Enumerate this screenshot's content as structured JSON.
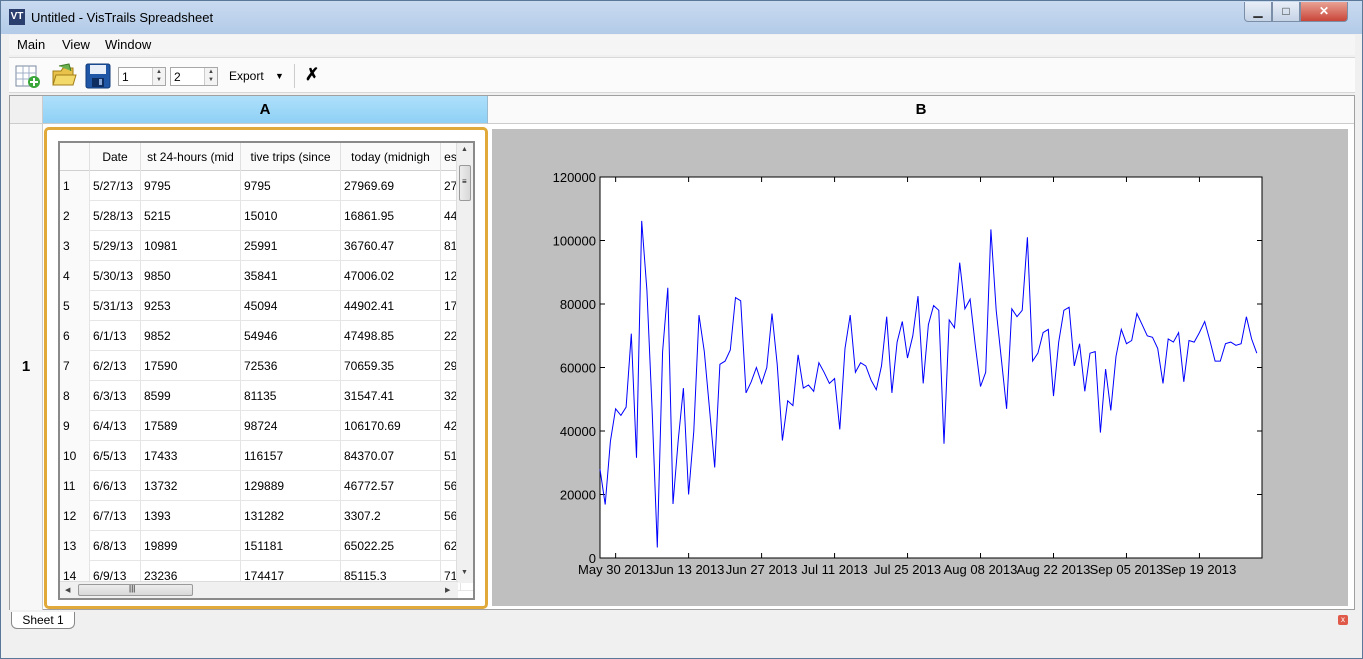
{
  "window": {
    "title": "Untitled - VisTrails Spreadsheet",
    "app_icon": "VT",
    "min": "▁",
    "max": "□",
    "close": "✕"
  },
  "menu": {
    "items": [
      "Main",
      "View",
      "Window"
    ]
  },
  "toolbar": {
    "rows_value": "1",
    "cols_value": "2",
    "export_label": "Export",
    "export_arrow": "▼",
    "clear_icon": "✗",
    "spin_up": "▲",
    "spin_down": "▼"
  },
  "sheet": {
    "col_a": "A",
    "col_b": "B",
    "row_1": "1",
    "tab": "Sheet 1",
    "tab_close": "x"
  },
  "table": {
    "headers": [
      "",
      "Date",
      "st 24-hours (mid",
      "tive trips (since",
      "today (midnigh",
      "es"
    ],
    "rows": [
      [
        "1",
        "5/27/13",
        "9795",
        "9795",
        "27969.69",
        "27"
      ],
      [
        "2",
        "5/28/13",
        "5215",
        "15010",
        "16861.95",
        "44"
      ],
      [
        "3",
        "5/29/13",
        "10981",
        "25991",
        "36760.47",
        "81"
      ],
      [
        "4",
        "5/30/13",
        "9850",
        "35841",
        "47006.02",
        "12"
      ],
      [
        "5",
        "5/31/13",
        "9253",
        "45094",
        "44902.41",
        "17"
      ],
      [
        "6",
        "6/1/13",
        "9852",
        "54946",
        "47498.85",
        "22"
      ],
      [
        "7",
        "6/2/13",
        "17590",
        "72536",
        "70659.35",
        "29"
      ],
      [
        "8",
        "6/3/13",
        "8599",
        "81135",
        "31547.41",
        "32"
      ],
      [
        "9",
        "6/4/13",
        "17589",
        "98724",
        "106170.69",
        "42"
      ],
      [
        "10",
        "6/5/13",
        "17433",
        "116157",
        "84370.07",
        "51"
      ],
      [
        "11",
        "6/6/13",
        "13732",
        "129889",
        "46772.57",
        "56"
      ],
      [
        "12",
        "6/7/13",
        "1393",
        "131282",
        "3307.2",
        "56"
      ],
      [
        "13",
        "6/8/13",
        "19899",
        "151181",
        "65022.25",
        "62"
      ],
      [
        "14",
        "6/9/13",
        "23236",
        "174417",
        "85115.3",
        "71"
      ]
    ],
    "scroll": {
      "up": "▲",
      "down": "▼",
      "left": "◀",
      "right": "▶",
      "grip_v": "≡",
      "grip_h": "|||"
    }
  },
  "chart_data": {
    "type": "line",
    "title": "",
    "xlabel": "",
    "ylabel": "",
    "ylim": [
      0,
      120000
    ],
    "xlim": [
      "2013-05-27",
      "2013-10-01"
    ],
    "yticks": [
      0,
      20000,
      40000,
      60000,
      80000,
      100000,
      120000
    ],
    "xticks": [
      {
        "date": "2013-05-30",
        "label": "May 30 2013"
      },
      {
        "date": "2013-06-13",
        "label": "Jun 13 2013"
      },
      {
        "date": "2013-06-27",
        "label": "Jun 27 2013"
      },
      {
        "date": "2013-07-11",
        "label": "Jul 11 2013"
      },
      {
        "date": "2013-07-25",
        "label": "Jul 25 2013"
      },
      {
        "date": "2013-08-08",
        "label": "Aug 08 2013"
      },
      {
        "date": "2013-08-22",
        "label": "Aug 22 2013"
      },
      {
        "date": "2013-09-05",
        "label": "Sep 05 2013"
      },
      {
        "date": "2013-09-19",
        "label": "Sep 19 2013"
      }
    ],
    "line_color": "#0000ff",
    "series": [
      {
        "start_date": "2013-05-27",
        "step_days": 1,
        "values": [
          27970,
          16862,
          36760,
          47006,
          44902,
          47499,
          70659,
          31547,
          106171,
          84370,
          46773,
          3307,
          65022,
          85115,
          17000,
          37000,
          53500,
          20000,
          40000,
          76500,
          65000,
          47000,
          28500,
          61000,
          62000,
          65500,
          82000,
          81000,
          52000,
          55500,
          60000,
          55000,
          60000,
          77000,
          61000,
          37000,
          49500,
          48000,
          64000,
          53500,
          54500,
          52500,
          61500,
          58500,
          55000,
          56500,
          40500,
          66000,
          76500,
          58500,
          61500,
          60500,
          56000,
          53000,
          60500,
          76000,
          52000,
          68000,
          74500,
          63000,
          70000,
          82500,
          55000,
          73500,
          79500,
          78000,
          36000,
          75000,
          72500,
          93000,
          78500,
          81500,
          67000,
          54000,
          58500,
          103500,
          78000,
          62500,
          47000,
          78500,
          76000,
          78000,
          101000,
          62000,
          64500,
          71000,
          72000,
          51000,
          68000,
          78000,
          79000,
          60500,
          67500,
          52500,
          64500,
          65000,
          39500,
          59500,
          46500,
          63500,
          72000,
          67500,
          68500,
          77000,
          73500,
          70000,
          69500,
          66000,
          55000,
          69000,
          68000,
          71000,
          55500,
          68500,
          68000,
          71000,
          74500,
          68500,
          62000,
          62000,
          67500,
          68000,
          67000,
          67500,
          76000,
          69000,
          64500
        ]
      }
    ]
  }
}
